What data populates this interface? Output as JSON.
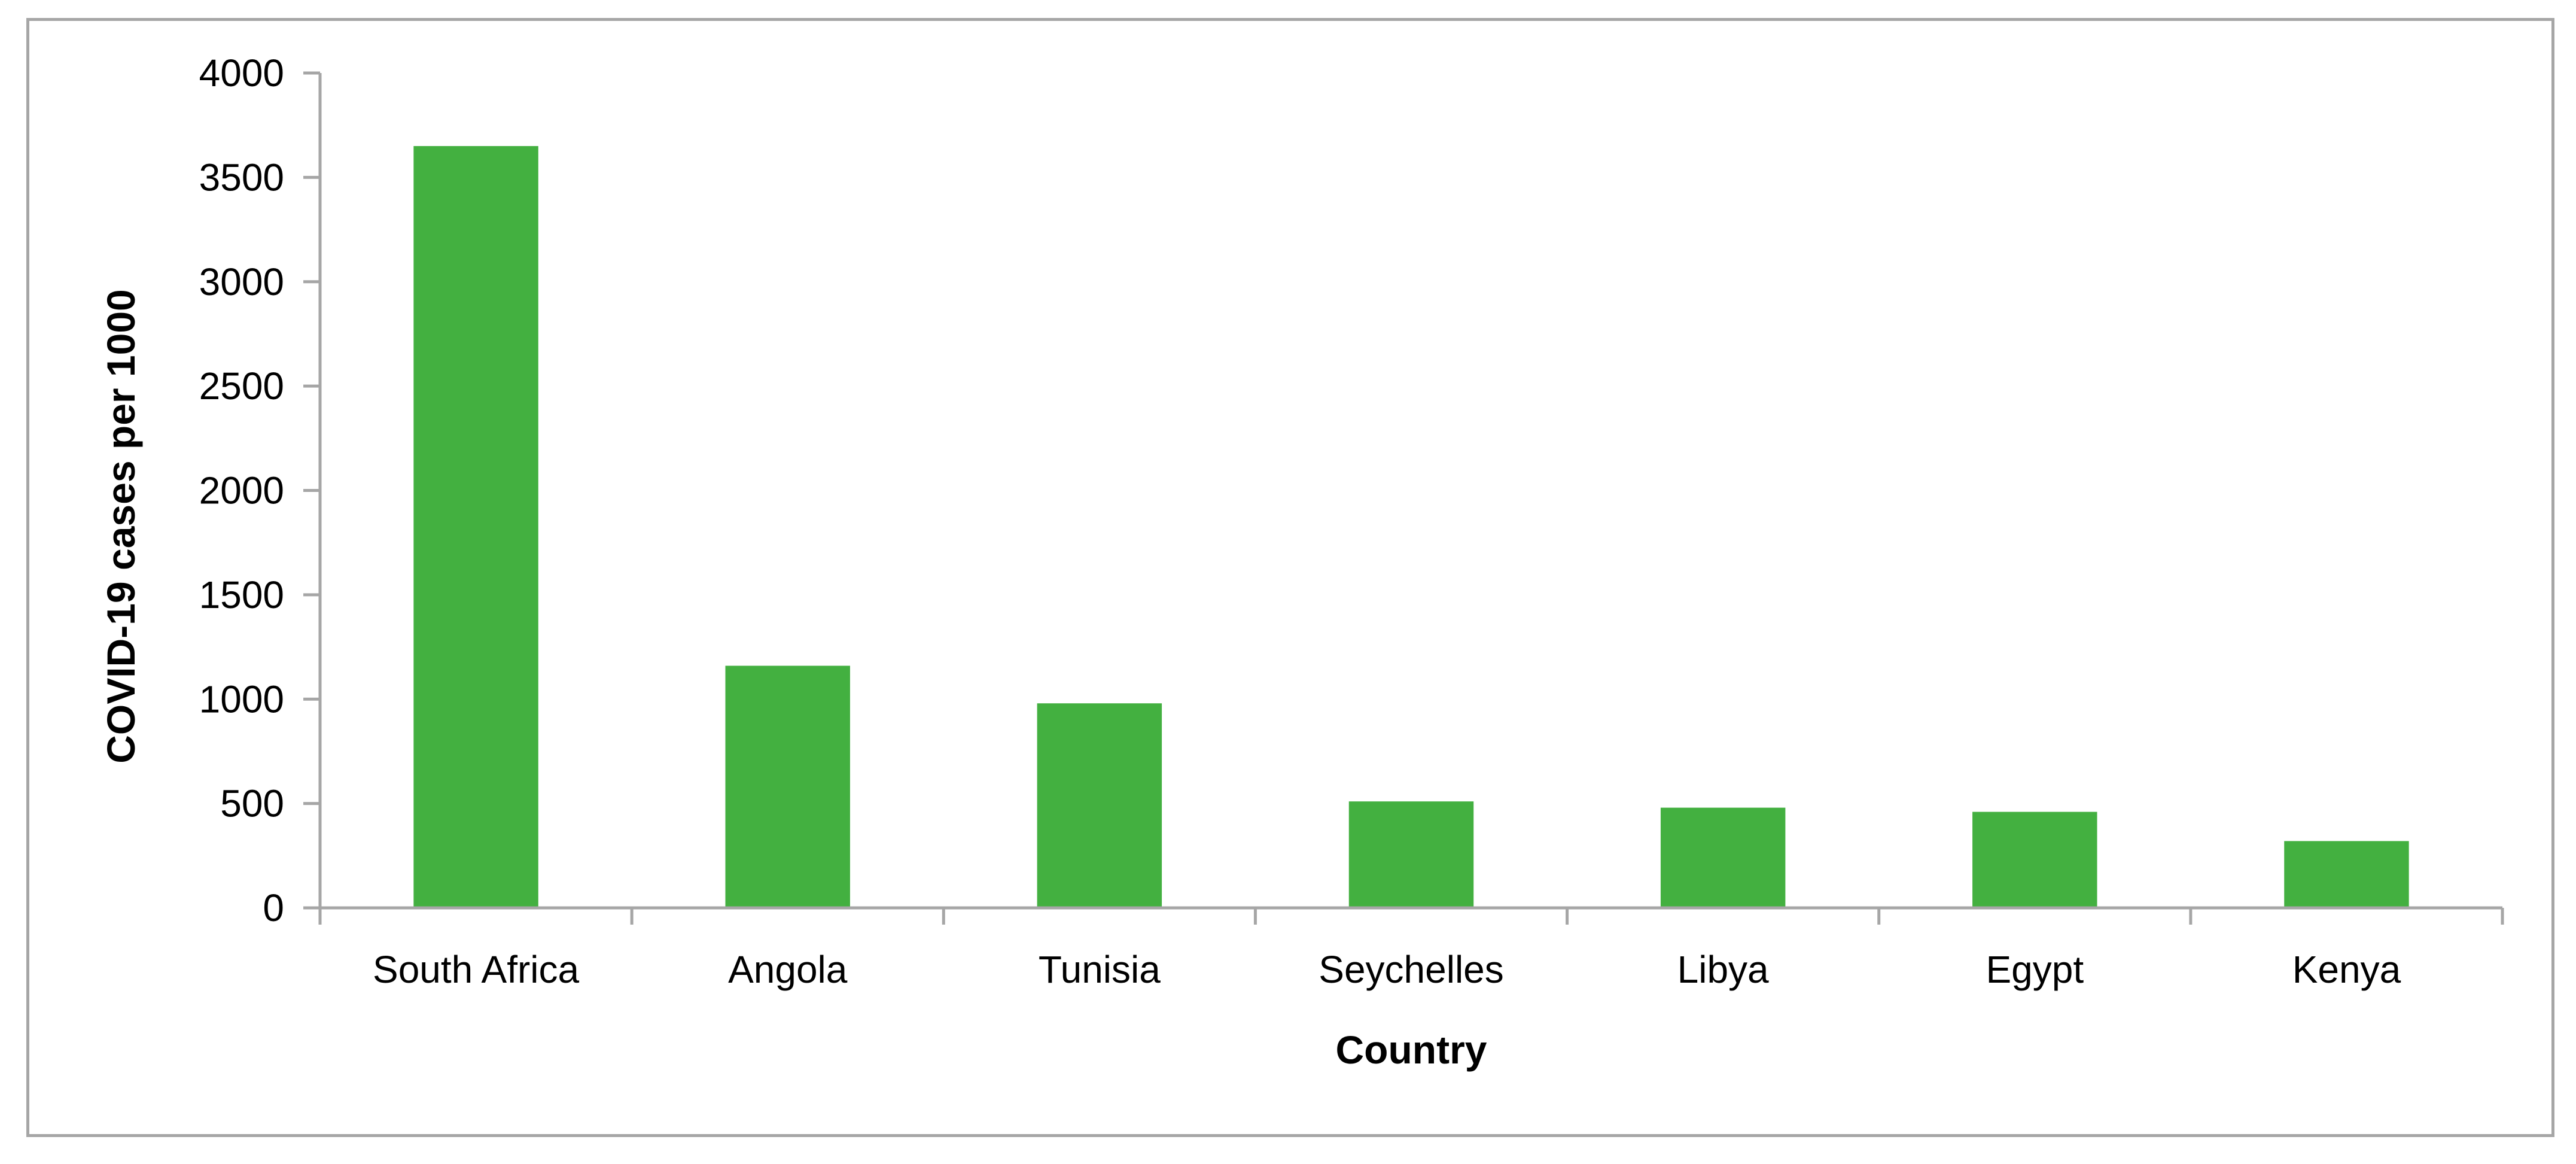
{
  "chart_data": {
    "type": "bar",
    "categories": [
      "South Africa",
      "Angola",
      "Tunisia",
      "Seychelles",
      "Libya",
      "Egypt",
      "Kenya"
    ],
    "values": [
      3650,
      1160,
      980,
      510,
      480,
      460,
      320
    ],
    "title": "",
    "xlabel": "Country",
    "ylabel": "COVID-19 cases per 1000",
    "ylim": [
      0,
      4000
    ],
    "yticks": [
      0,
      500,
      1000,
      1500,
      2000,
      2500,
      3000,
      3500,
      4000
    ],
    "grid": false,
    "legend": "none",
    "colors": {
      "bar": "#43b040",
      "axis": "#a6a6a6",
      "frame": "#a6a6a6"
    }
  }
}
